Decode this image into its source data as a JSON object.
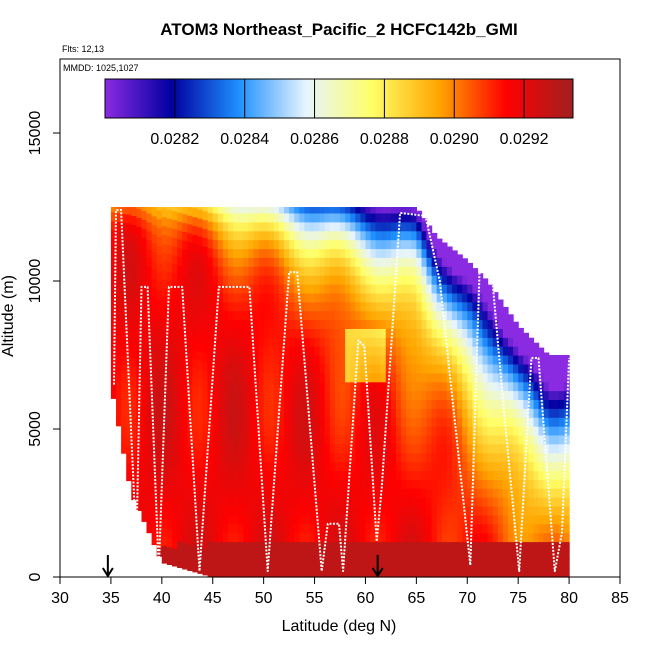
{
  "chart_data": {
    "type": "heatmap",
    "title": "ATOM3 Northeast_Pacific_2 HCFC142b_GMI",
    "flights_label": "Flts: 12,13",
    "dates_label": "MMDD: 1025,1027",
    "xlabel": "Latitude (deg N)",
    "ylabel": "Altitude (m)",
    "xlim": [
      30,
      85
    ],
    "ylim": [
      0,
      17500
    ],
    "xticks": [
      "30",
      "35",
      "40",
      "45",
      "50",
      "55",
      "60",
      "65",
      "70",
      "75",
      "80",
      "85"
    ],
    "yticks": [
      "0",
      "5000",
      "10000",
      "15000"
    ],
    "colorbar": {
      "range": [
        0.028,
        0.02934
      ],
      "ticks": [
        "0.0282",
        "0.0284",
        "0.0286",
        "0.0288",
        "0.0290",
        "0.0292"
      ],
      "colors": [
        "#8a2be2",
        "#0000a0",
        "#1e90ff",
        "#e6f4ff",
        "#ffff66",
        "#ffa500",
        "#ff0000",
        "#a02020"
      ]
    },
    "arrows_at_latitude": [
      34.7,
      61.2
    ],
    "curtain_columns": [
      {
        "lat": 35.0,
        "top": 12500,
        "bottom": 6500
      },
      {
        "lat": 37.0,
        "top": 12500,
        "bottom": 2800
      },
      {
        "lat": 38.5,
        "top": 12500,
        "bottom": 1700
      },
      {
        "lat": 40.0,
        "top": 12500,
        "bottom": 500
      },
      {
        "lat": 45.0,
        "top": 12500,
        "bottom": 0
      },
      {
        "lat": 50.0,
        "top": 12500,
        "bottom": 0
      },
      {
        "lat": 55.0,
        "top": 12500,
        "bottom": 0
      },
      {
        "lat": 60.0,
        "top": 12500,
        "bottom": 0
      },
      {
        "lat": 65.0,
        "top": 12500,
        "bottom": 0
      },
      {
        "lat": 67.0,
        "top": 11500,
        "bottom": 0
      },
      {
        "lat": 70.0,
        "top": 10700,
        "bottom": 0
      },
      {
        "lat": 72.0,
        "top": 10000,
        "bottom": 0
      },
      {
        "lat": 75.0,
        "top": 8500,
        "bottom": 0
      },
      {
        "lat": 78.0,
        "top": 7500,
        "bottom": 0
      },
      {
        "lat": 80.0,
        "top": 7500,
        "bottom": 0
      }
    ],
    "flight_track": [
      [
        35.3,
        6500
      ],
      [
        35.5,
        12400
      ],
      [
        36.0,
        12400
      ],
      [
        37.5,
        1000
      ],
      [
        38.0,
        9800
      ],
      [
        38.6,
        9800
      ],
      [
        39.7,
        200
      ],
      [
        40.7,
        9800
      ],
      [
        42.0,
        9800
      ],
      [
        43.7,
        200
      ],
      [
        45.6,
        9800
      ],
      [
        48.6,
        9800
      ],
      [
        50.4,
        200
      ],
      [
        52.5,
        10300
      ],
      [
        53.3,
        10300
      ],
      [
        55.7,
        200
      ],
      [
        56.3,
        1800
      ],
      [
        57.4,
        1800
      ],
      [
        57.8,
        200
      ],
      [
        59.3,
        8000
      ],
      [
        59.9,
        7800
      ],
      [
        61.1,
        1200
      ],
      [
        61.6,
        3000
      ],
      [
        63.4,
        12300
      ],
      [
        65.9,
        12200
      ],
      [
        67.3,
        10000
      ],
      [
        69.8,
        2000
      ],
      [
        70.3,
        400
      ],
      [
        71.2,
        10300
      ],
      [
        72.4,
        10300
      ],
      [
        73.5,
        6000
      ],
      [
        75.1,
        200
      ],
      [
        76.3,
        7400
      ],
      [
        77.0,
        7400
      ],
      [
        78.6,
        200
      ],
      [
        79.3,
        1500
      ],
      [
        80.0,
        7400
      ]
    ]
  }
}
